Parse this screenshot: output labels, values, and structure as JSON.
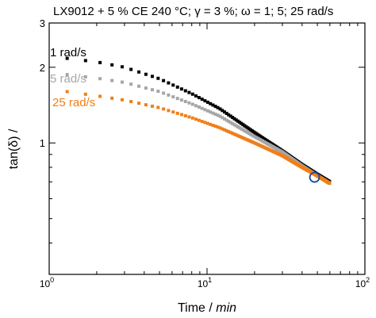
{
  "chart_data": {
    "type": "scatter",
    "title": "LX9012 + 5 % CE   240 °C; γ = 3 %; ω = 1; 5; 25 rad/s",
    "xlabel": "Time",
    "xlabel_unit": "min",
    "ylabel": "tan(δ)",
    "ylabel_unit": "/",
    "x_scale": "log",
    "y_scale": "log",
    "xlim": [
      1,
      100
    ],
    "ylim": [
      0.3,
      3
    ],
    "x_ticks": [
      {
        "value": 1,
        "base": "10",
        "exp": "0"
      },
      {
        "value": 10,
        "base": "10",
        "exp": "1"
      },
      {
        "value": 100,
        "base": "10",
        "exp": "2"
      }
    ],
    "y_ticks": [
      {
        "value": 1,
        "label": "1"
      },
      {
        "value": 2,
        "label": "2"
      },
      {
        "value": 3,
        "label": "3"
      }
    ],
    "grid": false,
    "series": [
      {
        "name": "1 rad/s",
        "color": "#000000",
        "x": [
          1.3,
          2,
          3,
          5,
          8,
          12,
          20,
          30,
          40,
          50,
          60
        ],
        "y": [
          2.17,
          2.1,
          2.0,
          1.8,
          1.57,
          1.37,
          1.1,
          0.93,
          0.82,
          0.75,
          0.7
        ]
      },
      {
        "name": "5 rad/s",
        "color": "#a6a6a6",
        "x": [
          1.3,
          2,
          3,
          5,
          8,
          12,
          20,
          30,
          40,
          50,
          60
        ],
        "y": [
          1.87,
          1.81,
          1.74,
          1.6,
          1.43,
          1.28,
          1.06,
          0.92,
          0.81,
          0.74,
          0.69
        ]
      },
      {
        "name": "25 rad/s",
        "color": "#f07f19",
        "x": [
          1.3,
          2,
          3,
          5,
          8,
          12,
          20,
          30,
          40,
          50,
          60
        ],
        "y": [
          1.6,
          1.54,
          1.48,
          1.38,
          1.26,
          1.15,
          1.0,
          0.89,
          0.8,
          0.74,
          0.69
        ]
      }
    ],
    "annotations": [
      {
        "type": "circle",
        "x": 48,
        "y": 0.73,
        "color": "#1f4e9e"
      }
    ]
  }
}
